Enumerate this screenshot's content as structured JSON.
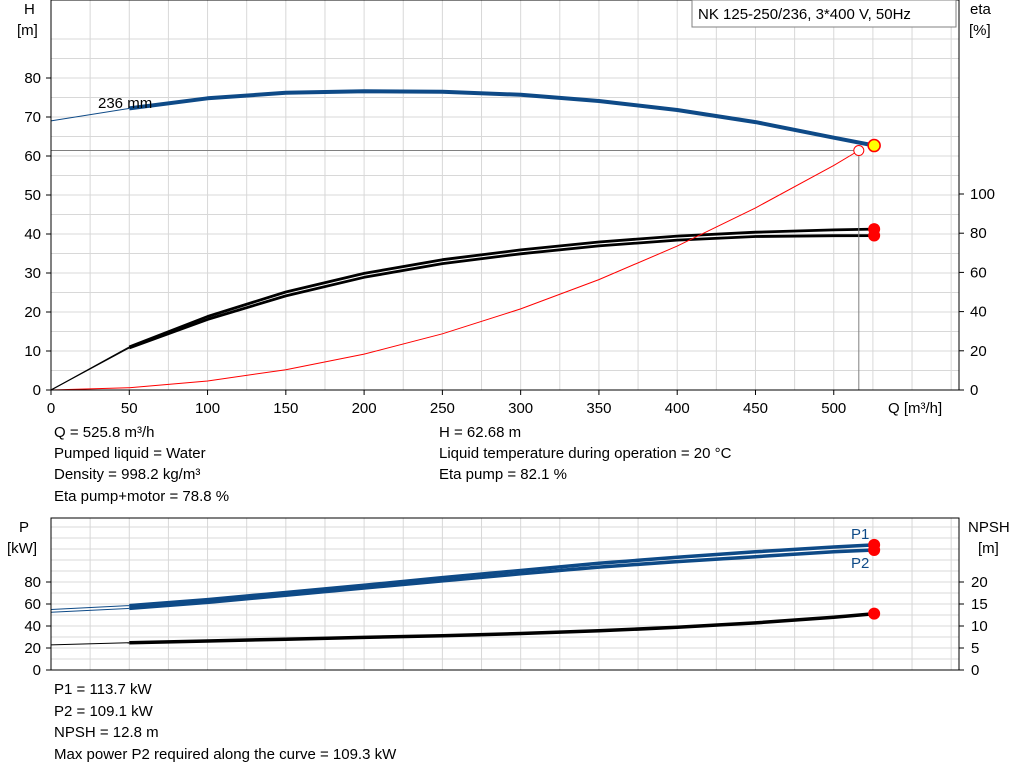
{
  "chart_data": [
    {
      "type": "line",
      "title": "NK 125-250/236, 3*400 V, 50Hz",
      "y_axis_left": {
        "label": "H",
        "unit": "[m]",
        "ticks": [
          "0",
          "10",
          "20",
          "30",
          "40",
          "50",
          "60",
          "70",
          "80"
        ],
        "range": [
          0,
          90
        ]
      },
      "y_axis_right": {
        "label": "eta",
        "unit": "[%]",
        "ticks": [
          "0",
          "20",
          "40",
          "60",
          "80",
          "100"
        ],
        "range": [
          0,
          100
        ]
      },
      "x_axis": {
        "label": "Q [m³/h]",
        "ticks": [
          "0",
          "50",
          "100",
          "150",
          "200",
          "250",
          "300",
          "350",
          "400",
          "450",
          "500"
        ],
        "range": [
          0,
          580
        ]
      },
      "grid": true,
      "series": [
        {
          "name": "236 mm",
          "axis": "H",
          "color": "#0e4a87",
          "x": [
            0,
            50,
            100,
            150,
            200,
            250,
            300,
            350,
            400,
            450,
            500,
            525.8
          ],
          "values": [
            69,
            72.2,
            74.8,
            76.2,
            76.6,
            76.5,
            75.7,
            74.1,
            71.8,
            68.7,
            64.7,
            62.7
          ]
        },
        {
          "axis": "eta",
          "color": "#000000",
          "x": [
            0,
            50,
            100,
            150,
            200,
            250,
            300,
            350,
            400,
            450,
            500,
            525.8
          ],
          "values": [
            0,
            22,
            37.5,
            50,
            59.5,
            66.5,
            71.5,
            75.5,
            78.5,
            80.5,
            81.7,
            82.1
          ]
        },
        {
          "axis": "eta",
          "color": "#000000",
          "x": [
            0,
            50,
            100,
            150,
            200,
            250,
            300,
            350,
            400,
            450,
            500,
            525.8
          ],
          "values": [
            0,
            21.5,
            36,
            48,
            57.5,
            64.5,
            69.5,
            73.5,
            76.5,
            78.3,
            78.7,
            78.8
          ]
        },
        {
          "axis": "H",
          "color": "#ff0000",
          "x": [
            0,
            50,
            100,
            150,
            200,
            250,
            300,
            350,
            400,
            450,
            500,
            516
          ],
          "values": [
            0,
            0.6,
            2.3,
            5.2,
            9.2,
            14.4,
            20.8,
            28.3,
            36.9,
            46.7,
            57.6,
            61.4
          ]
        }
      ],
      "duty_point": {
        "Q": 525.8,
        "H": 62.68
      }
    },
    {
      "type": "line",
      "y_axis_left": {
        "label": "P",
        "unit": "[kW]",
        "ticks": [
          "0",
          "20",
          "40",
          "60",
          "80"
        ],
        "range": [
          0,
          130
        ]
      },
      "y_axis_right": {
        "label": "NPSH",
        "unit": "[m]",
        "ticks": [
          "0",
          "5",
          "10",
          "15",
          "20"
        ],
        "range": [
          0,
          29
        ]
      },
      "x_axis": {
        "range": [
          0,
          580
        ]
      },
      "grid": true,
      "series": [
        {
          "name": "P1",
          "axis": "P",
          "color": "#0e4a87",
          "x": [
            0,
            50,
            100,
            150,
            200,
            250,
            300,
            350,
            400,
            450,
            500,
            525.8
          ],
          "values": [
            55,
            58.5,
            64,
            70.5,
            77,
            84,
            90.5,
            97,
            102.5,
            107.5,
            111.8,
            113.7
          ]
        },
        {
          "name": "P2",
          "axis": "P",
          "color": "#0e4a87",
          "x": [
            0,
            50,
            100,
            150,
            200,
            250,
            300,
            350,
            400,
            450,
            500,
            525.8
          ],
          "values": [
            52.5,
            56,
            61.5,
            68,
            74.5,
            81,
            87.5,
            93.5,
            98.5,
            103,
            107.5,
            109.1
          ]
        },
        {
          "axis": "NPSH",
          "color": "#000000",
          "x": [
            0,
            50,
            100,
            150,
            200,
            250,
            300,
            350,
            400,
            450,
            500,
            525.8
          ],
          "values": [
            5.7,
            6.2,
            6.6,
            7.0,
            7.4,
            7.8,
            8.3,
            8.9,
            9.7,
            10.7,
            12.0,
            12.8
          ]
        }
      ]
    }
  ],
  "results_upper": {
    "left": [
      "Q = 525.8 m³/h",
      "Pumped liquid = Water",
      "Density = 998.2 kg/m³",
      "Eta pump+motor = 78.8 %"
    ],
    "right": [
      "H = 62.68 m",
      "Liquid temperature during operation = 20 °C",
      "Eta pump = 82.1 %"
    ]
  },
  "results_lower": [
    "P1 = 113.7 kW",
    "P2 = 109.1 kW",
    "NPSH = 12.8 m",
    "Max power P2 required along the curve = 109.3 kW"
  ]
}
